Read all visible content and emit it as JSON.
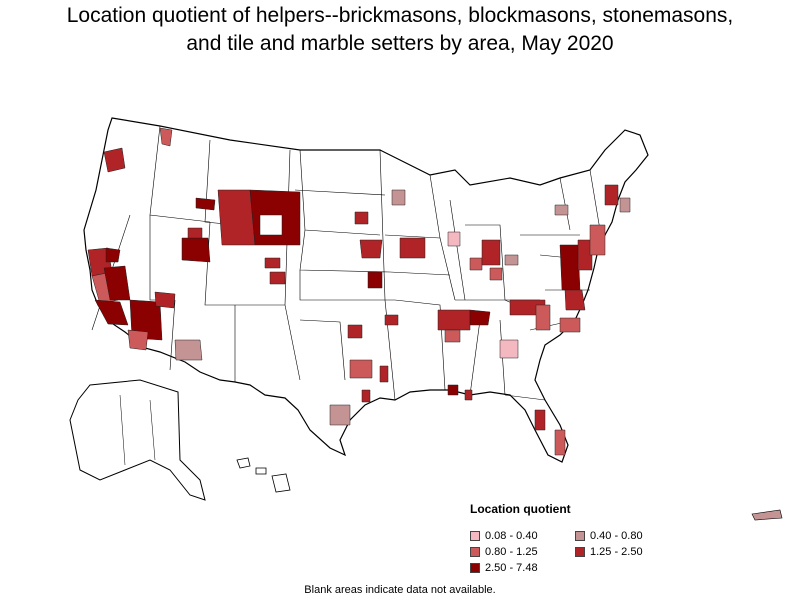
{
  "title_line1": "Location quotient of helpers--brickmasons, blockmasons, stonemasons,",
  "title_line2": "and tile and marble setters by area, May 2020",
  "legend": {
    "title": "Location quotient",
    "items": [
      {
        "label": "0.08 - 0.40",
        "color": "#f4b8c0"
      },
      {
        "label": "0.40 - 0.80",
        "color": "#c49494"
      },
      {
        "label": "0.80 - 1.25",
        "color": "#cc5a5a"
      },
      {
        "label": "1.25 - 2.50",
        "color": "#b02428"
      },
      {
        "label": "2.50 - 7.48",
        "color": "#8b0000"
      }
    ]
  },
  "footnote": "Blank areas indicate data not available."
}
